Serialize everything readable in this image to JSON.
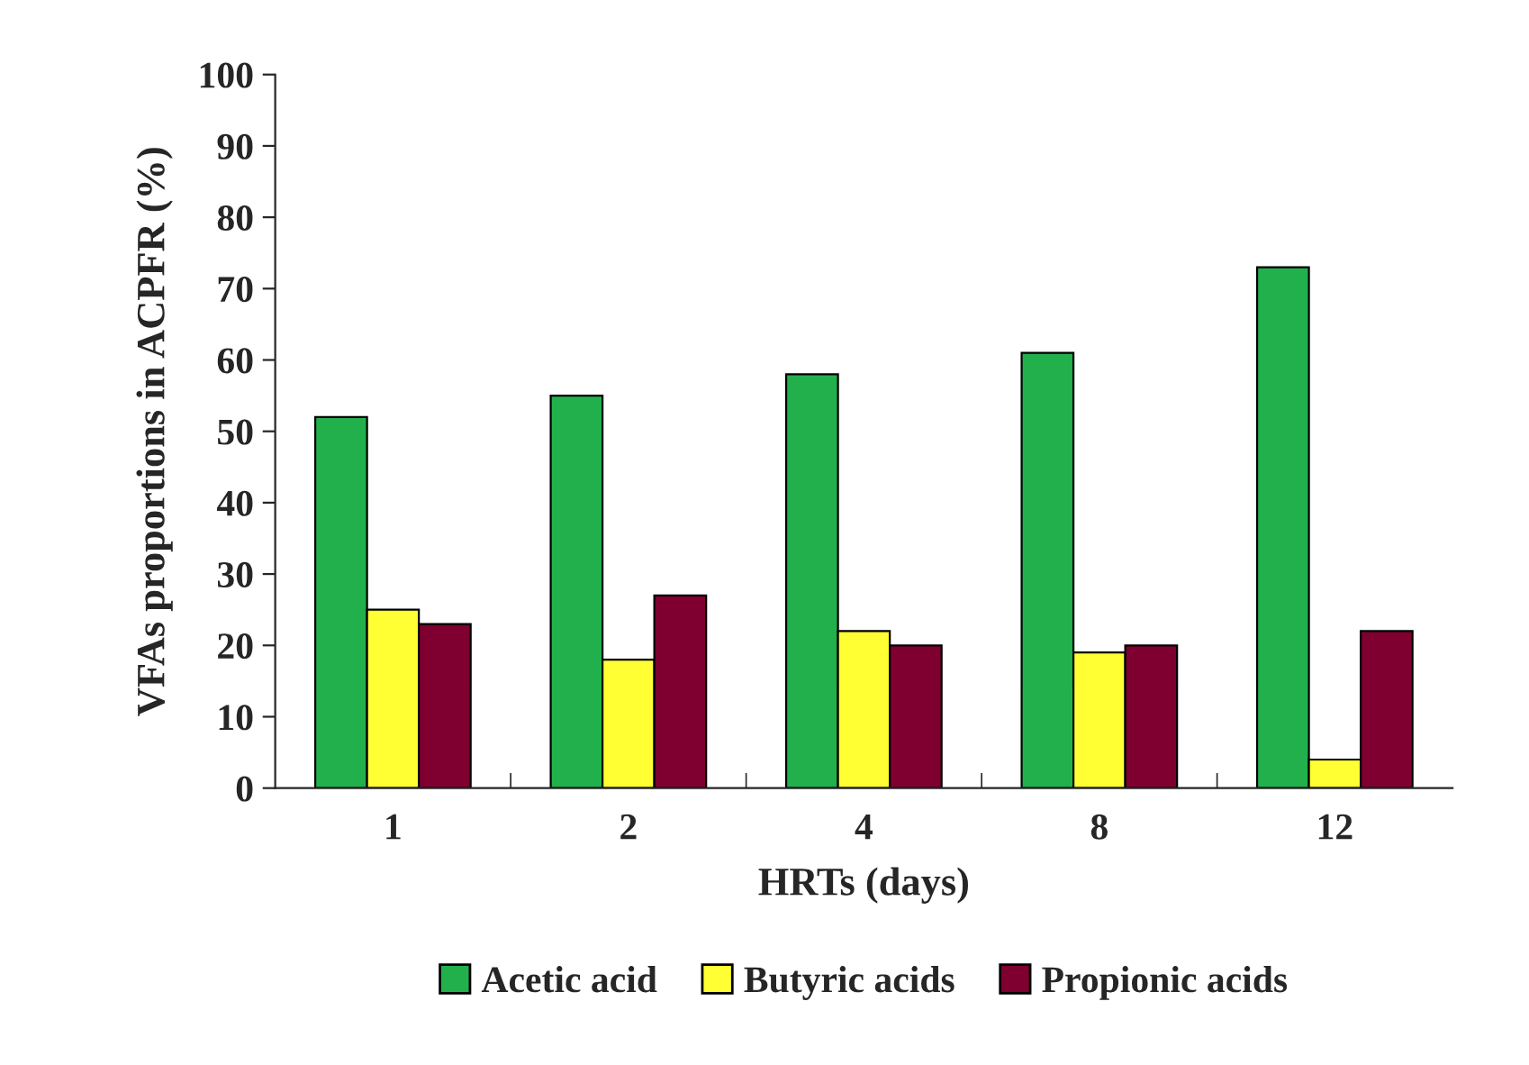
{
  "chart_data": {
    "type": "bar",
    "xlabel": "HRTs (days)",
    "ylabel": "VFAs proportions in ACPFR (%)",
    "categories": [
      "1",
      "2",
      "4",
      "8",
      "12"
    ],
    "series": [
      {
        "name": "Acetic acid",
        "color": "#22b04c",
        "values": [
          52,
          55,
          58,
          61,
          73
        ]
      },
      {
        "name": "Butyric acids",
        "color": "#ffff33",
        "values": [
          25,
          18,
          22,
          19,
          4
        ]
      },
      {
        "name": "Propionic acids",
        "color": "#7f0030",
        "values": [
          23,
          27,
          20,
          20,
          22
        ]
      }
    ],
    "ylim": [
      0,
      100
    ],
    "yticks": [
      0,
      10,
      20,
      30,
      40,
      50,
      60,
      70,
      80,
      90,
      100
    ],
    "grid": false,
    "legend": "bottom"
  }
}
